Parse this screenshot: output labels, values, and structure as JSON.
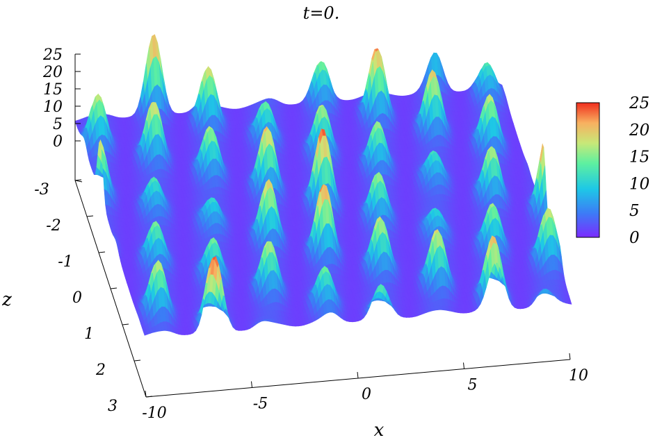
{
  "chart_data": {
    "type": "surface",
    "title": "t=0.",
    "xlabel": "x",
    "ylabel": "z",
    "zlabel": "",
    "xlim": [
      -10,
      10
    ],
    "ylim": [
      -3,
      3
    ],
    "zlim": [
      0,
      25
    ],
    "x_ticks": [
      "-10",
      "-5",
      "0",
      "5",
      "10"
    ],
    "y_ticks": [
      "-3",
      "-2",
      "-1",
      "0",
      "1",
      "2",
      "3"
    ],
    "z_ticks": [
      "0",
      "5",
      "10",
      "15",
      "20",
      "25"
    ],
    "colorbar": {
      "range": [
        0,
        25
      ],
      "ticks": [
        "0",
        "5",
        "10",
        "15",
        "20",
        "25"
      ],
      "colormap": "rainbow",
      "colors": [
        "#7b2cff",
        "#3c7cf6",
        "#1ec8e6",
        "#5ef0a0",
        "#c8e878",
        "#f8b060",
        "#f02e1e"
      ]
    },
    "grid": false,
    "legend": "none",
    "surface_description": "periodic lattice of intensity peaks over x in [-10,10], z in [-3,3]; peak heights roughly 10-25"
  }
}
